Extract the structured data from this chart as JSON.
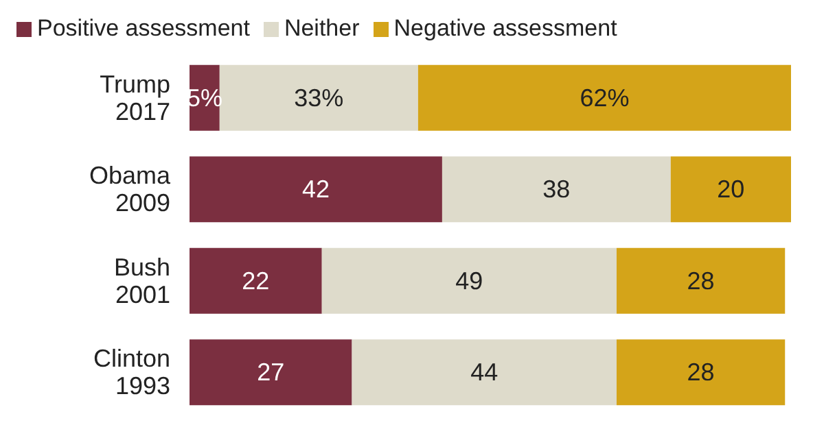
{
  "chart_data": {
    "type": "bar",
    "orientation": "horizontal",
    "stacked": true,
    "legend": "top left",
    "categories": [
      "Trump 2017",
      "Obama 2009",
      "Bush 2001",
      "Clinton 1993"
    ],
    "series": [
      {
        "name": "Positive assessment",
        "color": "#7b2f40",
        "values": [
          5,
          42,
          22,
          27
        ],
        "value_labels": [
          "5%",
          "42",
          "22",
          "27"
        ]
      },
      {
        "name": "Neither",
        "color": "#dedbcb",
        "values": [
          33,
          38,
          49,
          44
        ],
        "value_labels": [
          "33%",
          "38",
          "49",
          "44"
        ]
      },
      {
        "name": "Negative assessment",
        "color": "#d4a419",
        "values": [
          62,
          20,
          28,
          28
        ],
        "value_labels": [
          "62%",
          "20",
          "28",
          "28"
        ]
      }
    ]
  }
}
